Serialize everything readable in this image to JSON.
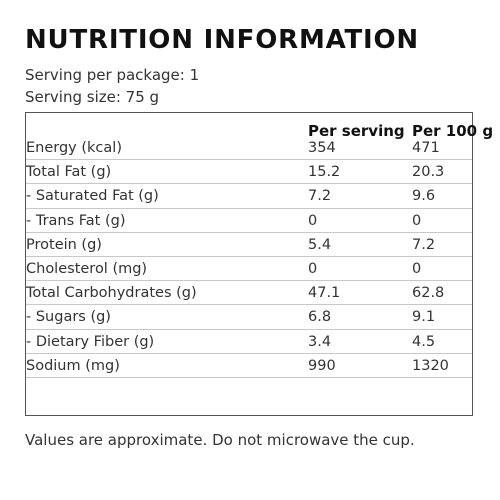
{
  "title": "NUTRITION INFORMATION",
  "serving": {
    "per_package": "Serving per package: 1",
    "size": "Serving size: 75 g"
  },
  "table": {
    "columns": [
      "Per serving",
      "Per 100 g"
    ],
    "rows": [
      {
        "name": "Energy (kcal)",
        "per_serving": "354",
        "per_100g": "471"
      },
      {
        "name": "Total Fat (g)",
        "per_serving": "15.2",
        "per_100g": "20.3"
      },
      {
        "name": "- Saturated Fat (g)",
        "per_serving": "7.2",
        "per_100g": "9.6"
      },
      {
        "name": "- Trans Fat (g)",
        "per_serving": "0",
        "per_100g": "0"
      },
      {
        "name": "Protein (g)",
        "per_serving": "5.4",
        "per_100g": "7.2"
      },
      {
        "name": "Cholesterol (mg)",
        "per_serving": "0",
        "per_100g": "0"
      },
      {
        "name": "Total Carbohydrates (g)",
        "per_serving": "47.1",
        "per_100g": "62.8"
      },
      {
        "name": "- Sugars (g)",
        "per_serving": "6.8",
        "per_100g": "9.1"
      },
      {
        "name": "- Dietary Fiber (g)",
        "per_serving": "3.4",
        "per_100g": "4.5"
      },
      {
        "name": "Sodium (mg)",
        "per_serving": "990",
        "per_100g": "1320"
      }
    ]
  },
  "footnote": "Values are approximate. Do not microwave the cup."
}
